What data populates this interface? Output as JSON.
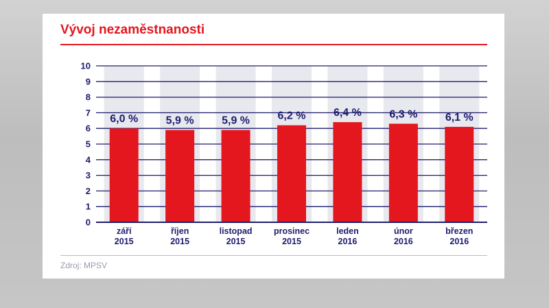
{
  "title": "Vývoj nezaměstnanosti",
  "source": "Zdroj: MPSV",
  "colors": {
    "bar": "#e3171d",
    "grid": "#1c1c6e",
    "label": "#1c1c6e",
    "band": "#e8e8ef",
    "accent": "#e3171d"
  },
  "chart_data": {
    "type": "bar",
    "title": "Vývoj nezaměstnanosti",
    "xlabel": "",
    "ylabel": "",
    "ylim": [
      0,
      10
    ],
    "yticks": [
      0,
      1,
      2,
      3,
      4,
      5,
      6,
      7,
      8,
      9,
      10
    ],
    "grid": true,
    "categories": [
      {
        "month": "září",
        "year": "2015"
      },
      {
        "month": "říjen",
        "year": "2015"
      },
      {
        "month": "listopad",
        "year": "2015"
      },
      {
        "month": "prosinec",
        "year": "2015"
      },
      {
        "month": "leden",
        "year": "2016"
      },
      {
        "month": "únor",
        "year": "2016"
      },
      {
        "month": "březen",
        "year": "2016"
      }
    ],
    "values": [
      6.0,
      5.9,
      5.9,
      6.2,
      6.4,
      6.3,
      6.1
    ],
    "data_labels": [
      "6,0 %",
      "5,9 %",
      "5,9 %",
      "6,2 %",
      "6,4 %",
      "6,3 %",
      "6,1 %"
    ]
  }
}
